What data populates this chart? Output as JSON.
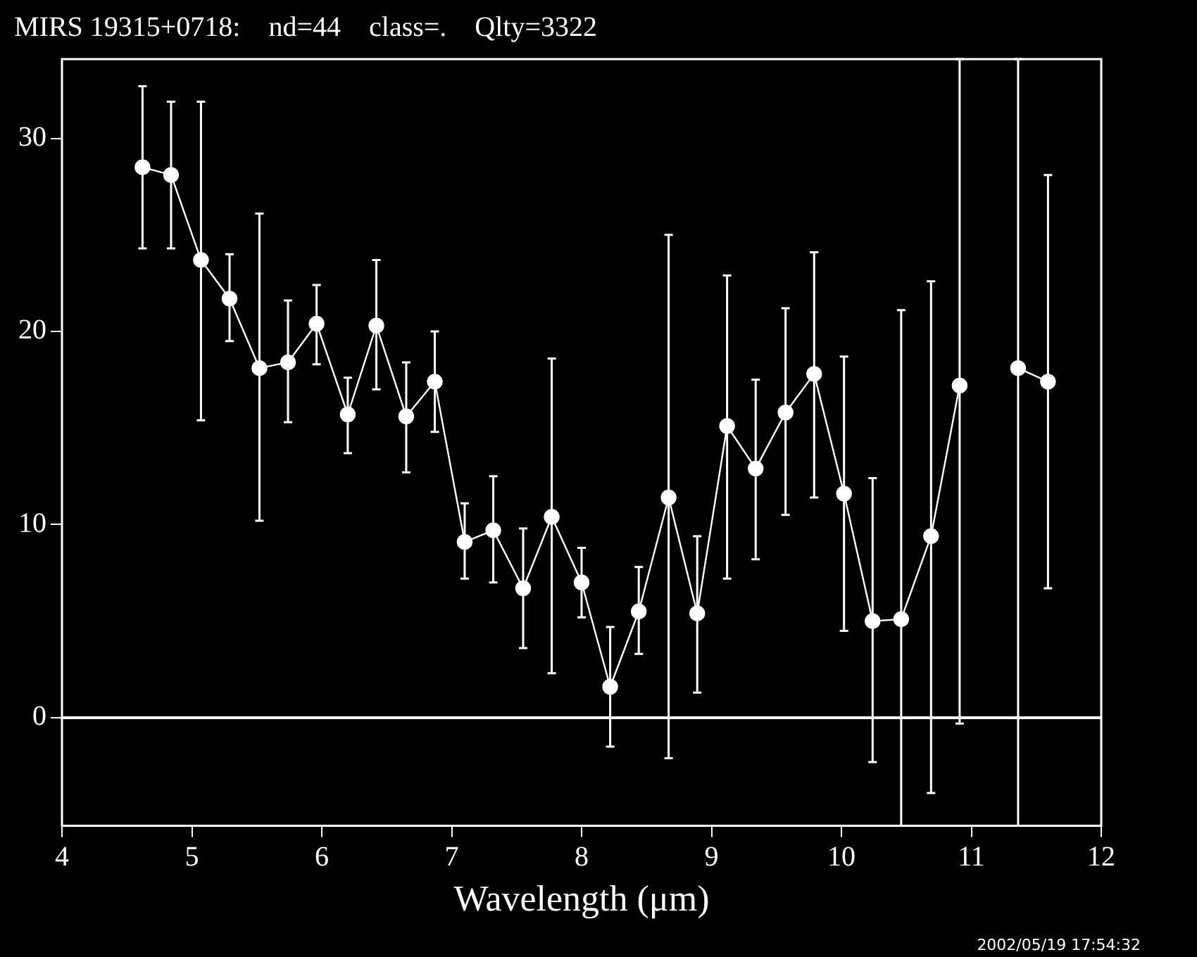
{
  "chart_data": {
    "type": "line",
    "title": "MIRS 19315+0718:    nd=44    class=.    Qlty=3322",
    "xlabel": "Wavelength (μm)",
    "x": [
      4.62,
      4.84,
      5.07,
      5.29,
      5.52,
      5.74,
      5.96,
      6.2,
      6.42,
      6.65,
      6.87,
      7.1,
      7.32,
      7.55,
      7.77,
      8.0,
      8.22,
      8.44,
      8.67,
      8.89,
      9.12,
      9.34,
      9.57,
      9.79,
      10.02,
      10.24,
      10.46,
      10.69,
      10.91,
      11.13,
      11.36,
      11.59
    ],
    "series": [
      {
        "color": "#ffffff",
        "values": [
          28.5,
          28.1,
          23.7,
          21.7,
          18.1,
          18.4,
          20.4,
          15.7,
          20.3,
          15.6,
          17.4,
          9.1,
          9.7,
          6.7,
          10.4,
          7.0,
          1.6,
          5.5,
          11.4,
          5.4,
          15.1,
          12.9,
          15.8,
          17.8,
          11.6,
          5.0,
          5.1,
          9.4,
          17.2,
          null,
          18.1,
          17.4
        ],
        "errors": [
          [
            24.3,
            32.7
          ],
          [
            24.3,
            31.9
          ],
          [
            15.4,
            31.9
          ],
          [
            19.5,
            24.0
          ],
          [
            10.2,
            26.1
          ],
          [
            15.3,
            21.6
          ],
          [
            18.3,
            22.4
          ],
          [
            13.7,
            17.6
          ],
          [
            17.0,
            23.7
          ],
          [
            12.7,
            18.4
          ],
          [
            14.8,
            20.0
          ],
          [
            7.2,
            11.1
          ],
          [
            7.0,
            12.5
          ],
          [
            3.6,
            9.8
          ],
          [
            2.3,
            18.6
          ],
          [
            5.2,
            8.8
          ],
          [
            -1.5,
            4.7
          ],
          [
            3.3,
            7.8
          ],
          [
            -2.1,
            25.0
          ],
          [
            1.3,
            9.4
          ],
          [
            7.2,
            22.9
          ],
          [
            8.2,
            17.5
          ],
          [
            10.5,
            21.2
          ],
          [
            11.4,
            24.1
          ],
          [
            4.5,
            18.7
          ],
          [
            -2.3,
            12.4
          ],
          [
            -5.6,
            21.1
          ],
          [
            -3.9,
            22.6
          ],
          [
            -0.3,
            34.1
          ],
          null,
          [
            -5.6,
            34.1
          ],
          [
            6.7,
            28.1
          ]
        ]
      }
    ],
    "xlim": [
      4,
      12
    ],
    "xticks": [
      4,
      5,
      6,
      7,
      8,
      9,
      10,
      11,
      12
    ],
    "ylim": [
      -5.6,
      34.1
    ],
    "yticks": [
      0,
      10,
      20,
      30
    ],
    "ref_lines": [
      {
        "axis": "y",
        "value": 0,
        "color": "#ffffff"
      }
    ],
    "marker": "circle",
    "line_style": "solid",
    "grid": false,
    "legend": false,
    "annotations": [
      "2002/05/19 17:54:32"
    ]
  }
}
